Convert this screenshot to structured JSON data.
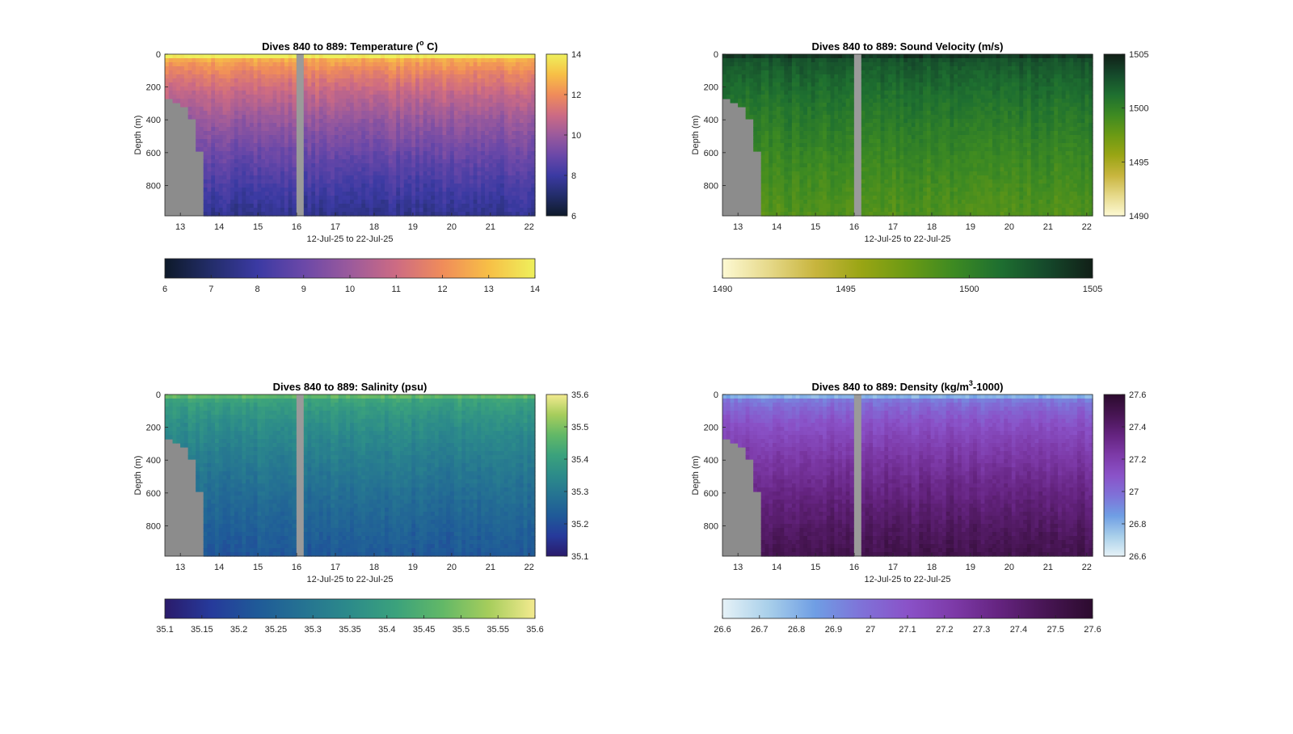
{
  "chart_data": [
    {
      "type": "heatmap",
      "title_main": "Dives 840 to 889: Temperature (",
      "title_sup": "o",
      "title_tail": " C)",
      "xlabel": "12-Jul-25 to 22-Jul-25",
      "ylabel": "Depth (m)",
      "x_ticks": [
        "13",
        "14",
        "15",
        "16",
        "17",
        "18",
        "19",
        "20",
        "21",
        "22"
      ],
      "x_range": [
        12.6,
        22.15
      ],
      "y_ticks": [
        "0",
        "200",
        "400",
        "600",
        "800"
      ],
      "y_range": [
        0,
        985
      ],
      "side_colorbar_ticks": [
        "14",
        "12",
        "10",
        "8",
        "6"
      ],
      "bottom_colorbar_ticks": [
        "6",
        "7",
        "8",
        "9",
        "10",
        "11",
        "12",
        "13",
        "14"
      ],
      "colorscale": [
        "#0e1a2a",
        "#232d6a",
        "#3b3aa3",
        "#6b48a8",
        "#9b5a9c",
        "#cd6b83",
        "#f08c5a",
        "#f7bf46",
        "#eef05c"
      ],
      "surface_value": 13.6,
      "deep_value": 7.6
    },
    {
      "type": "heatmap",
      "title_main": "Dives 840 to 889: Sound Velocity (m/s)",
      "title_sup": "",
      "title_tail": "",
      "xlabel": "12-Jul-25 to 22-Jul-25",
      "ylabel": "Depth (m)",
      "x_ticks": [
        "13",
        "14",
        "15",
        "16",
        "17",
        "18",
        "19",
        "20",
        "21",
        "22"
      ],
      "x_range": [
        12.6,
        22.15
      ],
      "y_ticks": [
        "0",
        "200",
        "400",
        "600",
        "800"
      ],
      "y_range": [
        0,
        985
      ],
      "side_colorbar_ticks": [
        "1505",
        "1500",
        "1495",
        "1490"
      ],
      "bottom_colorbar_ticks": [
        "1490",
        "1495",
        "1500",
        "1505"
      ],
      "colorscale": [
        "#fdf9d3",
        "#e6d98a",
        "#c8b53e",
        "#99a514",
        "#6b9a14",
        "#3d8a22",
        "#1e6f30",
        "#15492b",
        "#111f17"
      ],
      "surface_value": 1503.5,
      "deep_value": 1498.5
    },
    {
      "type": "heatmap",
      "title_main": "Dives 840 to 889: Salinity (psu)",
      "title_sup": "",
      "title_tail": "",
      "xlabel": "12-Jul-25 to 22-Jul-25",
      "ylabel": "Depth (m)",
      "x_ticks": [
        "13",
        "14",
        "15",
        "16",
        "17",
        "18",
        "19",
        "20",
        "21",
        "22"
      ],
      "x_range": [
        12.6,
        22.15
      ],
      "y_ticks": [
        "0",
        "200",
        "400",
        "600",
        "800"
      ],
      "y_range": [
        0,
        985
      ],
      "side_colorbar_ticks": [
        "35.6",
        "35.5",
        "35.4",
        "35.3",
        "35.2",
        "35.1"
      ],
      "bottom_colorbar_ticks": [
        "35.1",
        "35.15",
        "35.2",
        "35.25",
        "35.3",
        "35.35",
        "35.4",
        "35.45",
        "35.5",
        "35.55",
        "35.6"
      ],
      "colorscale": [
        "#2a1b6b",
        "#263a9b",
        "#1f5a98",
        "#257392",
        "#2c8b8a",
        "#3ba27c",
        "#62b867",
        "#a6cd5c",
        "#f3ea8f"
      ],
      "surface_value": 35.45,
      "deep_value": 35.22
    },
    {
      "type": "heatmap",
      "title_main": "Dives 840 to 889: Density (kg/m",
      "title_sup": "3",
      "title_tail": "-1000)",
      "xlabel": "12-Jul-25 to 22-Jul-25",
      "ylabel": "Depth (m)",
      "x_ticks": [
        "13",
        "14",
        "15",
        "16",
        "17",
        "18",
        "19",
        "20",
        "21",
        "22"
      ],
      "x_range": [
        12.6,
        22.15
      ],
      "y_ticks": [
        "0",
        "200",
        "400",
        "600",
        "800"
      ],
      "y_range": [
        0,
        985
      ],
      "side_colorbar_ticks": [
        "27.6",
        "27.4",
        "27.2",
        "27",
        "26.8",
        "26.6"
      ],
      "bottom_colorbar_ticks": [
        "26.6",
        "26.7",
        "26.8",
        "26.9",
        "27",
        "27.1",
        "27.2",
        "27.3",
        "27.4",
        "27.5",
        "27.6"
      ],
      "colorscale": [
        "#e6f2f7",
        "#a8cfea",
        "#6f9ee4",
        "#7f72d8",
        "#8a52c8",
        "#7d3aa8",
        "#64237f",
        "#471553",
        "#2c0b2e"
      ],
      "surface_value": 26.85,
      "deep_value": 27.5
    }
  ]
}
